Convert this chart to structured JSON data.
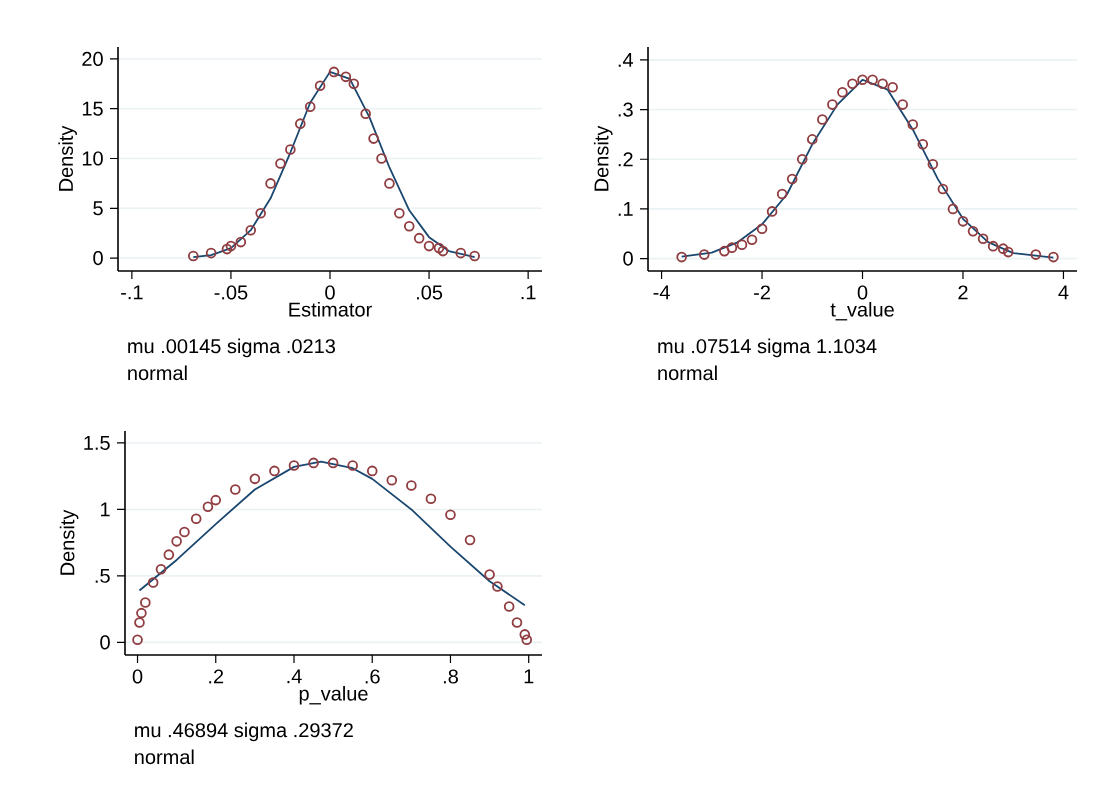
{
  "chart_data": [
    {
      "type": "line",
      "xlabel": "Estimator",
      "ylabel": "Density",
      "annotations": [
        "mu .00145 sigma .0213",
        "normal"
      ],
      "grid": "y",
      "xlim": [
        -0.107,
        0.107
      ],
      "ylim": [
        -1.3,
        21.2
      ],
      "xticks": [
        {
          "value": -0.1,
          "label": "-.1"
        },
        {
          "value": -0.05,
          "label": "-.05"
        },
        0,
        {
          "value": 0.05,
          "label": ".05"
        },
        {
          "value": 0.1,
          "label": ".1"
        }
      ],
      "yticks": [
        0,
        5,
        10,
        15,
        20
      ],
      "series": [
        {
          "color": "#1a476f",
          "marker": "none",
          "x": [
            -0.069,
            -0.06,
            -0.05,
            -0.04,
            -0.03,
            -0.02,
            -0.01,
            0,
            0.01,
            0.02,
            0.03,
            0.04,
            0.05,
            0.06,
            0.073
          ],
          "values": [
            0.1,
            0.3,
            1.0,
            2.8,
            6.0,
            10.6,
            15.6,
            18.7,
            18.0,
            14.1,
            9.1,
            4.8,
            2.1,
            0.7,
            0.1
          ]
        },
        {
          "type": "scatter",
          "marker": "circle",
          "color": "#903c40",
          "x": [
            -0.069,
            -0.06,
            -0.052,
            -0.05,
            -0.045,
            -0.04,
            -0.035,
            -0.03,
            -0.025,
            -0.02,
            -0.015,
            -0.01,
            -0.005,
            0.002,
            0.008,
            0.012,
            0.018,
            0.022,
            0.026,
            0.03,
            0.035,
            0.04,
            0.045,
            0.05,
            0.055,
            0.057,
            0.066,
            0.073
          ],
          "values": [
            0.2,
            0.5,
            0.9,
            1.2,
            1.6,
            2.8,
            4.5,
            7.5,
            9.5,
            10.9,
            13.5,
            15.2,
            17.3,
            18.7,
            18.2,
            17.5,
            14.5,
            12.0,
            10.0,
            7.5,
            4.5,
            3.2,
            2.0,
            1.2,
            1.0,
            0.7,
            0.5,
            0.2
          ]
        }
      ]
    },
    {
      "type": "line",
      "xlabel": "t_value",
      "ylabel": "Density",
      "annotations": [
        "mu .07514 sigma 1.1034",
        "normal"
      ],
      "grid": "y",
      "xlim": [
        -4.27,
        4.27
      ],
      "ylim": [
        -0.025,
        0.426
      ],
      "xticks": [
        -4,
        -2,
        0,
        2,
        4
      ],
      "yticks": [
        0,
        {
          "value": 0.1,
          "label": ".1"
        },
        {
          "value": 0.2,
          "label": ".2"
        },
        {
          "value": 0.3,
          "label": ".3"
        },
        {
          "value": 0.4,
          "label": ".4"
        }
      ],
      "series": [
        {
          "color": "#1a476f",
          "marker": "none",
          "x": [
            -3.6,
            -3,
            -2.5,
            -2,
            -1.5,
            -1,
            -0.5,
            0,
            0.5,
            1,
            1.5,
            2,
            2.5,
            3,
            3.8
          ],
          "values": [
            0.004,
            0.012,
            0.032,
            0.069,
            0.13,
            0.23,
            0.31,
            0.36,
            0.34,
            0.26,
            0.16,
            0.08,
            0.033,
            0.011,
            0.002
          ]
        },
        {
          "type": "scatter",
          "marker": "circle",
          "color": "#903c40",
          "x": [
            -3.6,
            -3.15,
            -2.75,
            -2.6,
            -2.4,
            -2.2,
            -2.0,
            -1.8,
            -1.6,
            -1.4,
            -1.2,
            -1.0,
            -0.8,
            -0.6,
            -0.4,
            -0.2,
            0,
            0.2,
            0.4,
            0.6,
            0.8,
            1.0,
            1.2,
            1.4,
            1.6,
            1.8,
            2.0,
            2.2,
            2.4,
            2.6,
            2.8,
            2.9,
            3.45,
            3.8
          ],
          "values": [
            0.003,
            0.008,
            0.015,
            0.022,
            0.028,
            0.038,
            0.06,
            0.095,
            0.13,
            0.16,
            0.2,
            0.24,
            0.28,
            0.31,
            0.335,
            0.352,
            0.36,
            0.36,
            0.352,
            0.345,
            0.31,
            0.27,
            0.23,
            0.19,
            0.14,
            0.1,
            0.075,
            0.055,
            0.04,
            0.025,
            0.02,
            0.013,
            0.008,
            0.003
          ]
        }
      ]
    },
    {
      "type": "line",
      "xlabel": "p_value",
      "ylabel": "Density",
      "annotations": [
        "mu .46894 sigma .29372",
        "normal"
      ],
      "grid": "y",
      "xlim": [
        -0.032,
        1.034
      ],
      "ylim": [
        -0.095,
        1.59
      ],
      "xticks": [
        0,
        {
          "value": 0.2,
          "label": ".2"
        },
        {
          "value": 0.4,
          "label": ".4"
        },
        {
          "value": 0.6,
          "label": ".6"
        },
        {
          "value": 0.8,
          "label": ".8"
        },
        1
      ],
      "yticks": [
        0,
        {
          "value": 0.5,
          "label": ".5"
        },
        1,
        1.5
      ],
      "series": [
        {
          "color": "#1a476f",
          "marker": "none",
          "x": [
            0.005,
            0.1,
            0.2,
            0.3,
            0.4,
            0.469,
            0.55,
            0.6,
            0.7,
            0.8,
            0.9,
            0.99
          ],
          "values": [
            0.39,
            0.62,
            0.89,
            1.15,
            1.32,
            1.36,
            1.31,
            1.23,
            1.0,
            0.72,
            0.46,
            0.28
          ]
        },
        {
          "type": "scatter",
          "marker": "circle",
          "color": "#903c40",
          "x": [
            0,
            0.005,
            0.01,
            0.02,
            0.04,
            0.06,
            0.08,
            0.1,
            0.12,
            0.15,
            0.18,
            0.2,
            0.25,
            0.3,
            0.35,
            0.4,
            0.45,
            0.5,
            0.55,
            0.6,
            0.65,
            0.7,
            0.75,
            0.8,
            0.85,
            0.9,
            0.92,
            0.95,
            0.97,
            0.99,
            0.995
          ],
          "values": [
            0.02,
            0.15,
            0.22,
            0.3,
            0.45,
            0.55,
            0.66,
            0.76,
            0.83,
            0.93,
            1.02,
            1.07,
            1.15,
            1.23,
            1.29,
            1.33,
            1.35,
            1.35,
            1.33,
            1.29,
            1.22,
            1.18,
            1.08,
            0.96,
            0.77,
            0.51,
            0.42,
            0.27,
            0.15,
            0.06,
            0.02
          ]
        }
      ]
    }
  ]
}
